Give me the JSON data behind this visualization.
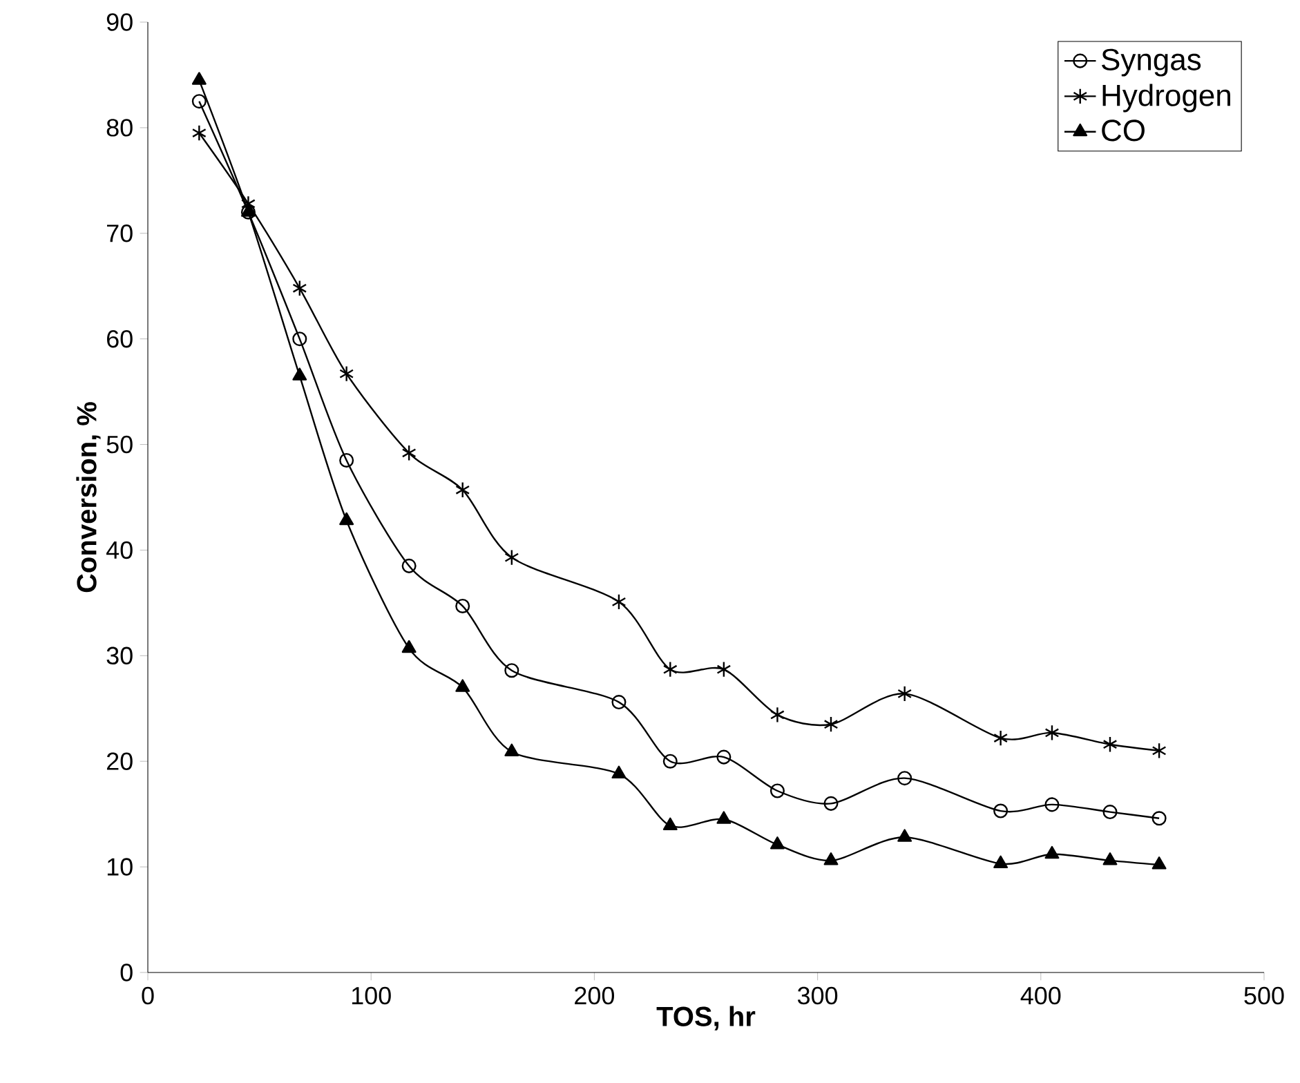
{
  "chart_data": {
    "type": "line",
    "xlabel": "TOS, hr",
    "ylabel": "Conversion, %",
    "xlim": [
      0,
      500
    ],
    "ylim": [
      0,
      90
    ],
    "xticks": [
      0,
      100,
      200,
      300,
      400,
      500
    ],
    "yticks": [
      0,
      10,
      20,
      30,
      40,
      50,
      60,
      70,
      80,
      90
    ],
    "grid": false,
    "legend": "top right",
    "line_style": "solid",
    "x": [
      23,
      45,
      68,
      89,
      117,
      141,
      163,
      211,
      234,
      258,
      282,
      306,
      339,
      382,
      405,
      431,
      453
    ],
    "series": [
      {
        "name": "Syngas",
        "color": "#000000",
        "marker": "circle",
        "values": [
          82.5,
          72,
          60,
          48.5,
          38.5,
          34.7,
          28.6,
          25.6,
          20,
          20.4,
          17.2,
          16,
          18.4,
          15.3,
          15.9,
          15.2,
          14.6
        ]
      },
      {
        "name": "Hydrogen",
        "color": "#000000",
        "marker": "cross",
        "values": [
          79.5,
          72.8,
          64.8,
          56.7,
          49.2,
          45.7,
          39.3,
          35.1,
          28.7,
          28.7,
          24.4,
          23.5,
          26.4,
          22.2,
          22.7,
          21.6,
          21
        ]
      },
      {
        "name": "CO",
        "color": "#000000",
        "marker": "triangle",
        "values": [
          84.5,
          72,
          56.5,
          42.8,
          30.7,
          27,
          20.9,
          18.8,
          13.9,
          14.5,
          12.1,
          10.6,
          12.8,
          10.3,
          11.2,
          10.6,
          10.2
        ]
      }
    ]
  }
}
